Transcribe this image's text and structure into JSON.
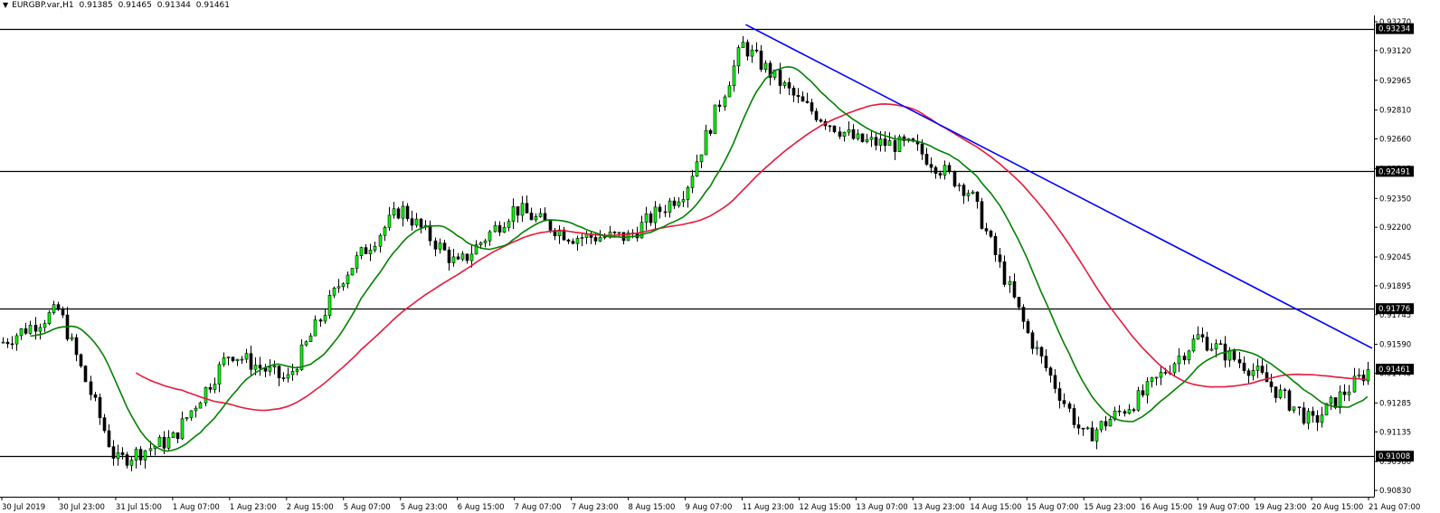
{
  "header": {
    "symbol": "EURGBP.var,H1",
    "open": "0.91385",
    "high": "0.91465",
    "low": "0.91344",
    "close": "0.91461",
    "menu_icon": "triangle-down-icon"
  },
  "colors": {
    "background": "#ffffff",
    "candle": "#000000",
    "up_candle": "#00ff00",
    "ma_fast": "#008000",
    "ma_slow": "#e6193c",
    "trendline": "#0000ff",
    "hline": "#000000"
  },
  "chart_data": {
    "type": "candlestick",
    "price_ticks": [
      "0.93270",
      "0.93120",
      "0.92965",
      "0.92810",
      "0.92660",
      "0.92505",
      "0.92350",
      "0.92200",
      "0.92045",
      "0.91895",
      "0.91745",
      "0.91590",
      "0.91440",
      "0.91285",
      "0.91135",
      "0.90980",
      "0.90830"
    ],
    "price_range": [
      0.9083,
      0.9327
    ],
    "time_labels": [
      "30 Jul 2019",
      "30 Jul 23:00",
      "31 Jul 15:00",
      "1 Aug 07:00",
      "1 Aug 23:00",
      "2 Aug 15:00",
      "5 Aug 07:00",
      "5 Aug 23:00",
      "6 Aug 15:00",
      "7 Aug 07:00",
      "7 Aug 23:00",
      "8 Aug 15:00",
      "9 Aug 07:00",
      "11 Aug 23:00",
      "12 Aug 15:00",
      "13 Aug 07:00",
      "13 Aug 23:00",
      "14 Aug 15:00",
      "15 Aug 07:00",
      "15 Aug 23:00",
      "16 Aug 15:00",
      "19 Aug 07:00",
      "19 Aug 23:00",
      "20 Aug 15:00",
      "21 Aug 07:00"
    ],
    "horizontal_levels": [
      {
        "price": 0.93234,
        "label": "0.93234"
      },
      {
        "price": 0.92491,
        "label": "0.92491"
      },
      {
        "price": 0.91776,
        "label": "0.91776"
      },
      {
        "price": 0.91008,
        "label": "0.91008"
      }
    ],
    "current_price": {
      "price": 0.91461,
      "label": "0.91461"
    },
    "trendline": {
      "from": {
        "label": "11 Aug 23:00",
        "price": 0.93255
      },
      "to": {
        "label": "21 Aug 07:00",
        "price": 0.9157
      }
    },
    "price_path": [
      {
        "label": "30 Jul 2019",
        "price": 0.916
      },
      {
        "label": "30 Jul 23:00",
        "price": 0.9177
      },
      {
        "label": "31 Jul 15:00",
        "price": 0.9098
      },
      {
        "label": "1 Aug 07:00",
        "price": 0.911
      },
      {
        "label": "1 Aug 23:00",
        "price": 0.9155
      },
      {
        "label": "2 Aug 15:00",
        "price": 0.914
      },
      {
        "label": "5 Aug 07:00",
        "price": 0.9195
      },
      {
        "label": "5 Aug 23:00",
        "price": 0.923
      },
      {
        "label": "6 Aug 15:00",
        "price": 0.92
      },
      {
        "label": "7 Aug 07:00",
        "price": 0.923
      },
      {
        "label": "7 Aug 23:00",
        "price": 0.9215
      },
      {
        "label": "8 Aug 15:00",
        "price": 0.9215
      },
      {
        "label": "9 Aug 07:00",
        "price": 0.924
      },
      {
        "label": "11 Aug 23:00",
        "price": 0.9315
      },
      {
        "label": "12 Aug 15:00",
        "price": 0.9285
      },
      {
        "label": "13 Aug 07:00",
        "price": 0.9265
      },
      {
        "label": "13 Aug 23:00",
        "price": 0.9262
      },
      {
        "label": "14 Aug 15:00",
        "price": 0.9238
      },
      {
        "label": "15 Aug 07:00",
        "price": 0.9165
      },
      {
        "label": "15 Aug 23:00",
        "price": 0.911
      },
      {
        "label": "16 Aug 15:00",
        "price": 0.9132
      },
      {
        "label": "19 Aug 07:00",
        "price": 0.9163
      },
      {
        "label": "19 Aug 23:00",
        "price": 0.9145
      },
      {
        "label": "20 Aug 15:00",
        "price": 0.9118
      },
      {
        "label": "21 Aug 07:00",
        "price": 0.9146
      }
    ]
  }
}
